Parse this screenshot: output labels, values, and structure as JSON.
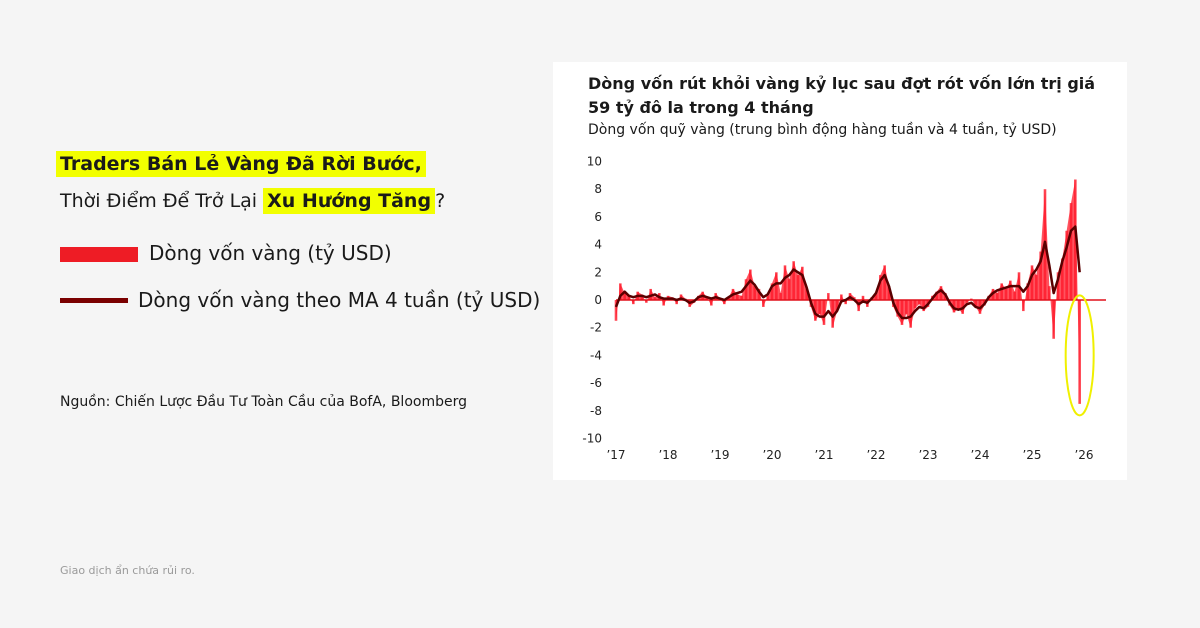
{
  "headline": {
    "line1_highlight": "Traders Bán Lẻ Vàng Đã Rời Bước,",
    "line2_prefix": "Thời Điểm Để Trở Lại",
    "line2_highlight": "Xu Hướng Tăng",
    "line2_suffix": "?"
  },
  "legend": [
    {
      "label": "Dòng vốn vàng (tỷ USD)",
      "color": "#ee1c25"
    },
    {
      "label": "Dòng vốn vàng theo MA 4 tuần (tỷ USD)",
      "color": "#7a0000"
    }
  ],
  "source": "Nguồn: Chiến Lược Đầu Tư Toàn Cầu của BofA, Bloomberg",
  "disclaimer": "Giao dịch ẩn chứa rủi ro.",
  "colors": {
    "highlight": "#f2ff00",
    "flow": "#ff1a2a",
    "ma": "#5a0000",
    "annotation_ellipse": "#f0f000"
  },
  "chart_data": {
    "type": "bar",
    "title": "Dòng vốn rút khỏi vàng kỷ lục sau đợt rót vốn lớn trị giá 59 tỷ đô la trong 4 tháng",
    "subtitle": "Dòng vốn quỹ vàng (trung bình động hàng tuần và 4 tuần, tỷ USD)",
    "x_start": 2017,
    "x_step_months": 1,
    "ylim": [
      -10,
      10
    ],
    "yticks": [
      "10",
      "8",
      "6",
      "4",
      "2",
      "0",
      "-2",
      "-4",
      "-6",
      "-8",
      "-10"
    ],
    "xticks": [
      "’17",
      "’18",
      "’19",
      "’20",
      "’21",
      "’22",
      "’23",
      "’24",
      "’25",
      "’26"
    ],
    "grid": false,
    "annotation": "ellipse around final record outflow",
    "series": [
      {
        "values": [
          -1.5,
          1.2,
          0.5,
          0.3,
          -0.3,
          0.6,
          0.4,
          -0.2,
          0.8,
          0.2,
          0.5,
          -0.4,
          0.3,
          0.2,
          -0.3,
          0.4,
          0.1,
          -0.5,
          -0.2,
          0.3,
          0.6,
          0.2,
          -0.4,
          0.5,
          0.1,
          -0.3,
          0.2,
          0.8,
          0.4,
          0.3,
          1.5,
          2.2,
          1.0,
          0.8,
          -0.5,
          0.3,
          1.2,
          2.0,
          0.5,
          2.5,
          1.5,
          2.8,
          1.8,
          2.4,
          0.8,
          -0.5,
          -1.5,
          -1.0,
          -1.8,
          0.5,
          -2.0,
          -0.8,
          0.4,
          -0.3,
          0.5,
          0.2,
          -0.8,
          0.3,
          -0.5,
          0.2,
          0.4,
          1.8,
          2.5,
          1.0,
          -0.5,
          -1.2,
          -1.8,
          -1.0,
          -2.0,
          -0.6,
          -0.3,
          -0.8,
          -0.5,
          0.3,
          0.6,
          1.0,
          0.5,
          -0.4,
          -0.9,
          -0.6,
          -1.0,
          -0.2,
          0.1,
          -0.5,
          -1.0,
          -0.4,
          0.3,
          0.8,
          0.5,
          1.2,
          0.8,
          1.4,
          0.6,
          2.0,
          -0.8,
          1.2,
          2.5,
          1.8,
          3.5,
          8.0,
          1.0,
          -2.8,
          2.0,
          3.0,
          5.0,
          7.0,
          8.7,
          -7.5
        ]
      },
      {
        "values": [
          -0.5,
          0.3,
          0.6,
          0.3,
          0.2,
          0.3,
          0.3,
          0.2,
          0.3,
          0.4,
          0.2,
          0.1,
          0.1,
          0.1,
          0.0,
          0.1,
          0.0,
          -0.2,
          -0.1,
          0.2,
          0.3,
          0.2,
          0.1,
          0.2,
          0.1,
          0.0,
          0.2,
          0.4,
          0.5,
          0.6,
          1.0,
          1.4,
          1.1,
          0.6,
          0.2,
          0.4,
          1.0,
          1.2,
          1.2,
          1.6,
          1.8,
          2.2,
          2.0,
          1.8,
          0.9,
          -0.2,
          -1.0,
          -1.2,
          -1.2,
          -0.8,
          -1.2,
          -0.8,
          -0.1,
          0.0,
          0.2,
          0.0,
          -0.3,
          -0.1,
          -0.2,
          0.1,
          0.5,
          1.4,
          1.8,
          1.0,
          -0.2,
          -0.9,
          -1.3,
          -1.3,
          -1.2,
          -0.8,
          -0.5,
          -0.6,
          -0.3,
          0.1,
          0.5,
          0.7,
          0.4,
          -0.2,
          -0.6,
          -0.7,
          -0.6,
          -0.3,
          -0.2,
          -0.5,
          -0.6,
          -0.3,
          0.2,
          0.5,
          0.7,
          0.8,
          0.9,
          1.0,
          1.0,
          1.0,
          0.6,
          1.0,
          1.8,
          2.2,
          2.8,
          4.2,
          2.5,
          0.5,
          1.5,
          2.8,
          3.8,
          5.0,
          5.3,
          2.0
        ]
      }
    ]
  }
}
